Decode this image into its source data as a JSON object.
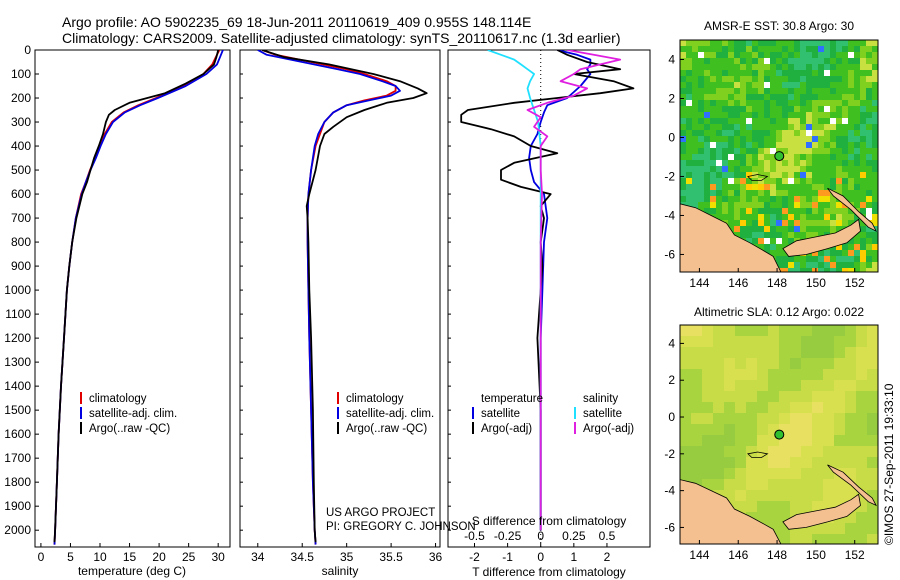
{
  "header": {
    "line1": "Argo profile: AO 5902235_69 18-Jun-2011 20110619_409 0.955S 148.114E",
    "line2": "Climatology: CARS2009. Satellite-adjusted climatology: synTS_20110617.nc (1.3d earlier)"
  },
  "credits": {
    "project": "US ARGO PROJECT",
    "pi": "PI: GREGORY C. JOHNSON",
    "imos": "©IMOS 27-Sep-2011 19:33:10"
  },
  "colors": {
    "climatology": "#e00000",
    "satellite": "#0000e0",
    "argo": "#000000",
    "sal_satellite": "#20e0ff",
    "sal_argo": "#e020e0",
    "land": "#f4c090"
  },
  "chart_data": [
    {
      "id": "temperature",
      "type": "line",
      "xlabel": "temperature (deg C)",
      "ylabel": "",
      "xlim": [
        -1,
        32
      ],
      "ylim": [
        2070,
        0
      ],
      "xticks": [
        0,
        5,
        10,
        15,
        20,
        25,
        30
      ],
      "yticks": [
        0,
        100,
        200,
        300,
        400,
        500,
        600,
        700,
        800,
        900,
        1000,
        1100,
        1200,
        1300,
        1400,
        1500,
        1600,
        1700,
        1800,
        1900,
        2000
      ],
      "legend": [
        "climatology",
        "satellite-adj. clim.",
        "Argo(..raw -QC)"
      ],
      "series": [
        {
          "name": "climatology",
          "color": "#e00000",
          "pressure": [
            0,
            30,
            60,
            100,
            150,
            200,
            230,
            260,
            300,
            350,
            400,
            450,
            500,
            550,
            600,
            700,
            800,
            900,
            1000,
            1200,
            1400,
            1600,
            1800,
            2000,
            2060
          ],
          "values": [
            30.2,
            29.6,
            29.0,
            27.5,
            24.0,
            19.5,
            16.5,
            14.0,
            12.0,
            10.8,
            10.0,
            9.2,
            8.3,
            7.6,
            6.8,
            5.9,
            5.3,
            4.8,
            4.4,
            3.9,
            3.4,
            3.0,
            2.7,
            2.4,
            2.3
          ]
        },
        {
          "name": "satellite-adj. clim.",
          "color": "#0000e0",
          "pressure": [
            0,
            30,
            60,
            100,
            150,
            200,
            230,
            260,
            300,
            350,
            400,
            450,
            500,
            550,
            600,
            700,
            800,
            900,
            1000,
            1200,
            1400,
            1600,
            1800,
            2000,
            2060
          ],
          "values": [
            30.8,
            30.3,
            29.8,
            28.0,
            24.5,
            19.8,
            16.8,
            14.2,
            12.2,
            11.0,
            10.1,
            9.3,
            8.4,
            7.6,
            6.9,
            5.9,
            5.3,
            4.8,
            4.4,
            3.9,
            3.4,
            3.0,
            2.7,
            2.4,
            2.3
          ]
        },
        {
          "name": "Argo(..raw -QC)",
          "color": "#000000",
          "pressure": [
            0,
            30,
            60,
            100,
            140,
            180,
            220,
            250,
            270,
            300,
            350,
            400,
            450,
            500,
            550,
            600,
            700,
            800,
            900,
            1000,
            1200,
            1400,
            1600,
            1800,
            2000,
            2050
          ],
          "values": [
            30.0,
            29.7,
            29.3,
            27.5,
            24.5,
            21.0,
            15.0,
            12.5,
            11.5,
            11.0,
            10.5,
            9.8,
            9.0,
            8.4,
            7.8,
            7.0,
            6.0,
            5.3,
            4.8,
            4.4,
            3.9,
            3.4,
            3.0,
            2.7,
            2.4,
            2.3
          ]
        }
      ]
    },
    {
      "id": "salinity",
      "type": "line",
      "xlabel": "salinity",
      "xlim": [
        33.8,
        36.05
      ],
      "ylim": [
        2070,
        0
      ],
      "xticks": [
        34,
        34.5,
        35,
        35.5,
        36
      ],
      "xticklabels": [
        "34",
        "34.5",
        "35",
        "35.5",
        "36"
      ],
      "legend": [
        "climatology",
        "satellite-adj. clim.",
        "Argo(..raw -QC)"
      ],
      "series": [
        {
          "name": "climatology",
          "color": "#e00000",
          "pressure": [
            0,
            20,
            50,
            80,
            100,
            130,
            150,
            170,
            190,
            210,
            230,
            260,
            300,
            350,
            400,
            500,
            600,
            700,
            800,
            1000,
            1200,
            1500,
            1800,
            2000,
            2060
          ],
          "values": [
            34.05,
            34.2,
            34.6,
            35.0,
            35.2,
            35.45,
            35.55,
            35.55,
            35.45,
            35.2,
            35.0,
            34.85,
            34.75,
            34.7,
            34.65,
            34.6,
            34.57,
            34.56,
            34.56,
            34.57,
            34.58,
            34.6,
            34.62,
            34.64,
            34.65
          ]
        },
        {
          "name": "satellite-adj. clim.",
          "color": "#0000e0",
          "pressure": [
            0,
            20,
            50,
            80,
            100,
            130,
            150,
            170,
            190,
            210,
            230,
            260,
            300,
            350,
            400,
            500,
            600,
            700,
            800,
            1000,
            1200,
            1500,
            1800,
            2000,
            2060
          ],
          "values": [
            34.0,
            34.1,
            34.5,
            34.9,
            35.15,
            35.4,
            35.55,
            35.6,
            35.5,
            35.25,
            35.0,
            34.85,
            34.75,
            34.68,
            34.64,
            34.6,
            34.57,
            34.56,
            34.56,
            34.57,
            34.58,
            34.6,
            34.62,
            34.64,
            34.65
          ]
        },
        {
          "name": "Argo(..raw -QC)",
          "color": "#000000",
          "pressure": [
            0,
            30,
            60,
            100,
            130,
            160,
            180,
            200,
            220,
            250,
            280,
            320,
            350,
            400,
            500,
            600,
            650,
            700,
            800,
            1000,
            1200,
            1500,
            1800,
            2000,
            2050
          ],
          "values": [
            34.05,
            34.3,
            34.8,
            35.3,
            35.6,
            35.8,
            35.9,
            35.75,
            35.45,
            35.2,
            35.0,
            34.85,
            34.75,
            34.7,
            34.65,
            34.58,
            34.55,
            34.56,
            34.57,
            34.58,
            34.6,
            34.62,
            34.63,
            34.64,
            34.65
          ]
        }
      ]
    },
    {
      "id": "difference",
      "type": "line",
      "xlabel": "T difference from climatology",
      "xlabel_s": "S difference from climatology",
      "ylim": [
        2070,
        0
      ],
      "xlim_T": [
        -2.8,
        3.3
      ],
      "xticks_T": [
        -2,
        -1,
        0,
        1,
        2
      ],
      "xticklabels_T": [
        "-2",
        "-1",
        "0",
        "1",
        "2"
      ],
      "xlim_S": [
        -0.7,
        0.825
      ],
      "xticks_S": [
        -0.5,
        -0.25,
        0,
        0.25,
        0.5
      ],
      "xticklabels_S": [
        "-0.5",
        "-0.25",
        "0",
        "0.25",
        "0.5"
      ],
      "legend_temperature": {
        "heading": "temperature",
        "items": [
          "satellite",
          "Argo(-adj)"
        ]
      },
      "legend_salinity": {
        "heading": "salinity",
        "items": [
          "satellite",
          "Argo(-adj)"
        ]
      },
      "series": [
        {
          "name": "T satellite",
          "axis": "T",
          "color": "#0000e0",
          "pressure": [
            0,
            20,
            40,
            60,
            80,
            100,
            150,
            200,
            230,
            260,
            300,
            350,
            400,
            450,
            500,
            550,
            600,
            700,
            800,
            1000,
            1200,
            1500,
            2000
          ],
          "values": [
            0.5,
            1.1,
            1.5,
            1.5,
            1.4,
            1.5,
            1.2,
            0.8,
            0.2,
            0.1,
            0.0,
            -0.1,
            -0.3,
            -0.35,
            -0.3,
            -0.2,
            0.1,
            0.2,
            0.1,
            0.05,
            0.0,
            0.0,
            0.0
          ]
        },
        {
          "name": "T Argo(-adj)",
          "axis": "T",
          "color": "#000000",
          "pressure": [
            0,
            20,
            50,
            80,
            100,
            130,
            160,
            180,
            200,
            220,
            250,
            270,
            300,
            330,
            360,
            400,
            430,
            470,
            500,
            540,
            570,
            600,
            650,
            700,
            800,
            900,
            1000,
            1200,
            1500,
            2000
          ],
          "values": [
            0.5,
            0.8,
            1.4,
            2.4,
            1.0,
            2.2,
            2.8,
            1.8,
            0.5,
            -0.8,
            -2.2,
            -2.4,
            -2.4,
            -1.5,
            -0.8,
            -0.3,
            0.5,
            -0.8,
            -1.2,
            -1.2,
            -0.6,
            0.3,
            0.0,
            0.1,
            0.0,
            0.05,
            0.0,
            -0.1,
            0.0,
            0.0
          ]
        },
        {
          "name": "S satellite",
          "axis": "S",
          "color": "#20e0ff",
          "pressure": [
            0,
            20,
            40,
            60,
            80,
            100,
            130,
            160,
            200,
            250,
            300,
            400,
            500,
            600,
            700,
            800,
            1000,
            1200,
            1500,
            2000
          ],
          "values": [
            -0.4,
            -0.3,
            -0.2,
            -0.15,
            -0.1,
            -0.05,
            -0.08,
            -0.1,
            -0.08,
            -0.05,
            -0.02,
            0.0,
            0.0,
            0.0,
            0.0,
            0.0,
            0.0,
            0.0,
            0.0,
            0.0
          ]
        },
        {
          "name": "S Argo(-adj)",
          "axis": "S",
          "color": "#e020e0",
          "pressure": [
            0,
            20,
            40,
            60,
            80,
            100,
            130,
            160,
            190,
            220,
            250,
            280,
            320,
            360,
            400,
            500,
            600,
            800,
            1000,
            1500,
            2000
          ],
          "values": [
            0.2,
            0.4,
            0.6,
            0.45,
            0.3,
            0.25,
            0.15,
            0.35,
            0.25,
            0.05,
            -0.1,
            0.0,
            -0.05,
            0.05,
            0.0,
            0.0,
            0.01,
            0.0,
            0.0,
            0.0,
            0.0
          ]
        }
      ]
    },
    {
      "id": "sst_map",
      "type": "heatmap",
      "title": "AMSR-E SST: 30.8 Argo: 30",
      "xlim": [
        143,
        153.2
      ],
      "ylim": [
        -6.9,
        5
      ],
      "xticks": [
        144,
        146,
        148,
        150,
        152
      ],
      "yticks": [
        4,
        2,
        0,
        -2,
        -4,
        -6
      ],
      "argo_position": [
        148.114,
        -0.955
      ]
    },
    {
      "id": "sla_map",
      "type": "heatmap",
      "title": "Altimetric SLA: 0.12 Argo: 0.022",
      "xlim": [
        143,
        153.2
      ],
      "ylim": [
        -6.9,
        5
      ],
      "xticks": [
        144,
        146,
        148,
        150,
        152
      ],
      "yticks": [
        4,
        2,
        0,
        -2,
        -4,
        -6
      ],
      "argo_position": [
        148.114,
        -0.955
      ]
    }
  ]
}
